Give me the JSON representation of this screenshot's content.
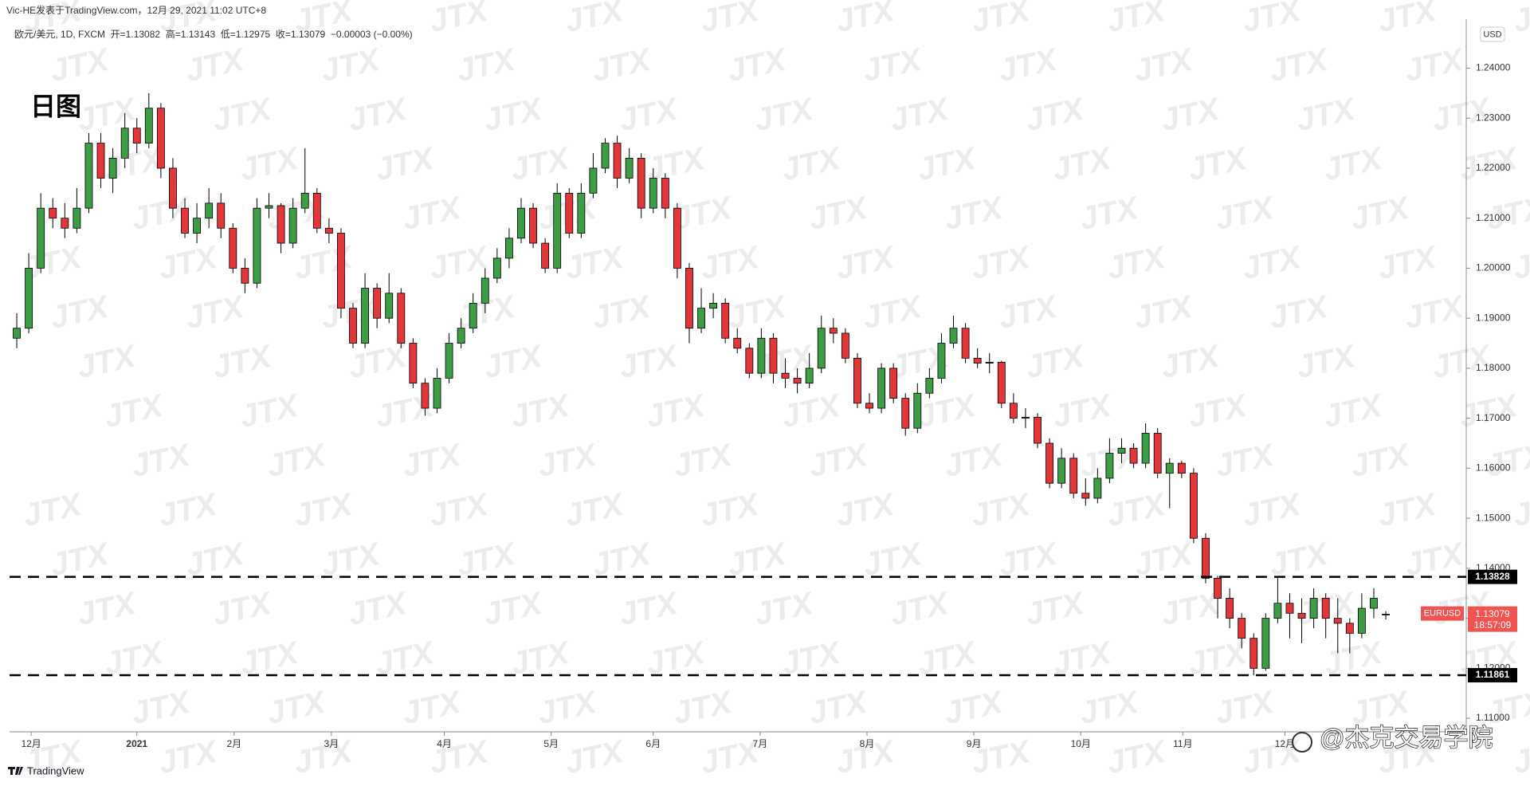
{
  "chart_data": {
    "type": "candlestick",
    "title": "日图",
    "publisher": "Vic-HE发表于TradingView.com，12月 29, 2021 11:02 UTC+8",
    "legend": "欧元/美元, 1D, FXCM  开=1.13082  高=1.13143  低=1.12975  收=1.13079  −0.00003 (−0.00%)",
    "currency": "USD",
    "symbol": "EURUSD",
    "countdown": "18:57:09",
    "footer": "TradingView",
    "watermark": "JTX",
    "credit": "@杰克交易学院",
    "up_color": "#3d9c45",
    "down_color": "#e3363b",
    "candles": [
      [
        1.186,
        1.191,
        1.184,
        1.188
      ],
      [
        1.188,
        1.203,
        1.187,
        1.2
      ],
      [
        1.2,
        1.215,
        1.199,
        1.212
      ],
      [
        1.212,
        1.214,
        1.208,
        1.21
      ],
      [
        1.21,
        1.213,
        1.206,
        1.208
      ],
      [
        1.208,
        1.216,
        1.207,
        1.212
      ],
      [
        1.212,
        1.227,
        1.211,
        1.225
      ],
      [
        1.225,
        1.227,
        1.216,
        1.218
      ],
      [
        1.218,
        1.224,
        1.215,
        1.222
      ],
      [
        1.222,
        1.231,
        1.22,
        1.228
      ],
      [
        1.228,
        1.23,
        1.223,
        1.225
      ],
      [
        1.225,
        1.235,
        1.224,
        1.232
      ],
      [
        1.232,
        1.233,
        1.218,
        1.22
      ],
      [
        1.22,
        1.222,
        1.21,
        1.212
      ],
      [
        1.212,
        1.214,
        1.206,
        1.207
      ],
      [
        1.207,
        1.213,
        1.205,
        1.21
      ],
      [
        1.21,
        1.216,
        1.208,
        1.213
      ],
      [
        1.213,
        1.215,
        1.206,
        1.208
      ],
      [
        1.208,
        1.209,
        1.199,
        1.2
      ],
      [
        1.2,
        1.202,
        1.195,
        1.197
      ],
      [
        1.197,
        1.214,
        1.196,
        1.212
      ],
      [
        1.212,
        1.215,
        1.21,
        1.2125
      ],
      [
        1.2125,
        1.213,
        1.203,
        1.205
      ],
      [
        1.205,
        1.214,
        1.204,
        1.212
      ],
      [
        1.212,
        1.224,
        1.211,
        1.215
      ],
      [
        1.215,
        1.216,
        1.207,
        1.208
      ],
      [
        1.208,
        1.21,
        1.205,
        1.207
      ],
      [
        1.207,
        1.208,
        1.19,
        1.192
      ],
      [
        1.192,
        1.193,
        1.184,
        1.185
      ],
      [
        1.185,
        1.199,
        1.184,
        1.196
      ],
      [
        1.196,
        1.197,
        1.188,
        1.19
      ],
      [
        1.19,
        1.199,
        1.189,
        1.195
      ],
      [
        1.195,
        1.196,
        1.184,
        1.185
      ],
      [
        1.185,
        1.186,
        1.176,
        1.177
      ],
      [
        1.177,
        1.178,
        1.1705,
        1.172
      ],
      [
        1.172,
        1.18,
        1.171,
        1.178
      ],
      [
        1.178,
        1.187,
        1.177,
        1.185
      ],
      [
        1.185,
        1.19,
        1.184,
        1.188
      ],
      [
        1.188,
        1.195,
        1.187,
        1.193
      ],
      [
        1.193,
        1.2,
        1.191,
        1.198
      ],
      [
        1.198,
        1.204,
        1.197,
        1.202
      ],
      [
        1.202,
        1.208,
        1.2,
        1.206
      ],
      [
        1.206,
        1.214,
        1.205,
        1.212
      ],
      [
        1.212,
        1.213,
        1.204,
        1.205
      ],
      [
        1.205,
        1.206,
        1.199,
        1.2
      ],
      [
        1.2,
        1.217,
        1.199,
        1.215
      ],
      [
        1.215,
        1.216,
        1.206,
        1.207
      ],
      [
        1.207,
        1.217,
        1.206,
        1.215
      ],
      [
        1.215,
        1.223,
        1.214,
        1.22
      ],
      [
        1.22,
        1.226,
        1.219,
        1.225
      ],
      [
        1.225,
        1.2265,
        1.216,
        1.218
      ],
      [
        1.218,
        1.224,
        1.217,
        1.222
      ],
      [
        1.222,
        1.223,
        1.21,
        1.212
      ],
      [
        1.212,
        1.22,
        1.211,
        1.218
      ],
      [
        1.218,
        1.219,
        1.21,
        1.212
      ],
      [
        1.212,
        1.213,
        1.198,
        1.2
      ],
      [
        1.2,
        1.201,
        1.185,
        1.188
      ],
      [
        1.188,
        1.196,
        1.187,
        1.192
      ],
      [
        1.192,
        1.195,
        1.19,
        1.193
      ],
      [
        1.193,
        1.194,
        1.185,
        1.186
      ],
      [
        1.186,
        1.188,
        1.183,
        1.184
      ],
      [
        1.184,
        1.185,
        1.178,
        1.179
      ],
      [
        1.179,
        1.188,
        1.178,
        1.186
      ],
      [
        1.186,
        1.187,
        1.177,
        1.179
      ],
      [
        1.179,
        1.182,
        1.176,
        1.178
      ],
      [
        1.178,
        1.18,
        1.175,
        1.177
      ],
      [
        1.177,
        1.183,
        1.176,
        1.18
      ],
      [
        1.18,
        1.1905,
        1.179,
        1.188
      ],
      [
        1.188,
        1.19,
        1.185,
        1.187
      ],
      [
        1.187,
        1.188,
        1.181,
        1.182
      ],
      [
        1.182,
        1.183,
        1.172,
        1.173
      ],
      [
        1.173,
        1.175,
        1.171,
        1.172
      ],
      [
        1.172,
        1.181,
        1.171,
        1.18
      ],
      [
        1.18,
        1.181,
        1.173,
        1.174
      ],
      [
        1.174,
        1.175,
        1.1665,
        1.168
      ],
      [
        1.168,
        1.177,
        1.167,
        1.175
      ],
      [
        1.175,
        1.18,
        1.174,
        1.178
      ],
      [
        1.178,
        1.187,
        1.177,
        1.185
      ],
      [
        1.185,
        1.1905,
        1.184,
        1.188
      ],
      [
        1.188,
        1.189,
        1.181,
        1.182
      ],
      [
        1.182,
        1.184,
        1.18,
        1.181
      ],
      [
        1.181,
        1.183,
        1.179,
        1.1812
      ],
      [
        1.1812,
        1.1815,
        1.172,
        1.173
      ],
      [
        1.173,
        1.175,
        1.169,
        1.17
      ],
      [
        1.17,
        1.172,
        1.168,
        1.1702
      ],
      [
        1.1702,
        1.171,
        1.164,
        1.165
      ],
      [
        1.165,
        1.166,
        1.156,
        1.157
      ],
      [
        1.157,
        1.164,
        1.156,
        1.162
      ],
      [
        1.162,
        1.163,
        1.154,
        1.155
      ],
      [
        1.155,
        1.158,
        1.1525,
        1.154
      ],
      [
        1.154,
        1.16,
        1.153,
        1.158
      ],
      [
        1.158,
        1.166,
        1.157,
        1.163
      ],
      [
        1.163,
        1.166,
        1.161,
        1.164
      ],
      [
        1.164,
        1.165,
        1.16,
        1.161
      ],
      [
        1.161,
        1.169,
        1.16,
        1.167
      ],
      [
        1.167,
        1.168,
        1.158,
        1.159
      ],
      [
        1.159,
        1.162,
        1.152,
        1.161
      ],
      [
        1.161,
        1.1615,
        1.158,
        1.159
      ],
      [
        1.159,
        1.16,
        1.145,
        1.146
      ],
      [
        1.146,
        1.147,
        1.137,
        1.138
      ],
      [
        1.138,
        1.1385,
        1.13,
        1.134
      ],
      [
        1.134,
        1.136,
        1.128,
        1.13
      ],
      [
        1.13,
        1.131,
        1.124,
        1.126
      ],
      [
        1.126,
        1.127,
        1.1186,
        1.12
      ],
      [
        1.12,
        1.131,
        1.1195,
        1.13
      ],
      [
        1.13,
        1.1383,
        1.129,
        1.133
      ],
      [
        1.133,
        1.135,
        1.126,
        1.131
      ],
      [
        1.131,
        1.134,
        1.125,
        1.13
      ],
      [
        1.13,
        1.136,
        1.128,
        1.134
      ],
      [
        1.134,
        1.135,
        1.126,
        1.13
      ],
      [
        1.13,
        1.134,
        1.123,
        1.129
      ],
      [
        1.129,
        1.13,
        1.123,
        1.127
      ],
      [
        1.127,
        1.135,
        1.126,
        1.132
      ],
      [
        1.132,
        1.136,
        1.13,
        1.134
      ],
      [
        1.13082,
        1.13143,
        1.12975,
        1.13079
      ]
    ],
    "hlines": [
      1.13828,
      1.11861
    ],
    "xlim": [
      -0.6,
      120.7
    ],
    "xticks": [
      {
        "value": 1.2,
        "label": "12月"
      },
      {
        "value": 10,
        "label": "2021"
      },
      {
        "value": 18.1,
        "label": "2月"
      },
      {
        "value": 26.2,
        "label": "3月"
      },
      {
        "value": 35.6,
        "label": "4月"
      },
      {
        "value": 44.5,
        "label": "5月"
      },
      {
        "value": 53,
        "label": "6月"
      },
      {
        "value": 61.9,
        "label": "7月"
      },
      {
        "value": 70.8,
        "label": "8月"
      },
      {
        "value": 79.7,
        "label": "9月"
      },
      {
        "value": 88.6,
        "label": "10月"
      },
      {
        "value": 97.1,
        "label": "11月"
      },
      {
        "value": 105.6,
        "label": "12月"
      }
    ],
    "ylim": [
      1.1073,
      1.2498
    ],
    "yticks": [
      {
        "value": 1.11,
        "label": "1.11000"
      },
      {
        "value": 1.12,
        "label": "1.12000"
      },
      {
        "value": 1.13,
        "label": "1.13000"
      },
      {
        "value": 1.14,
        "label": "1.14000"
      },
      {
        "value": 1.15,
        "label": "1.15000"
      },
      {
        "value": 1.16,
        "label": "1.16000"
      },
      {
        "value": 1.17,
        "label": "1.17000"
      },
      {
        "value": 1.18,
        "label": "1.18000"
      },
      {
        "value": 1.19,
        "label": "1.19000"
      },
      {
        "value": 1.2,
        "label": "1.20000"
      },
      {
        "value": 1.21,
        "label": "1.21000"
      },
      {
        "value": 1.22,
        "label": "1.22000"
      },
      {
        "value": 1.23,
        "label": "1.23000"
      },
      {
        "value": 1.24,
        "label": "1.24000"
      }
    ]
  }
}
